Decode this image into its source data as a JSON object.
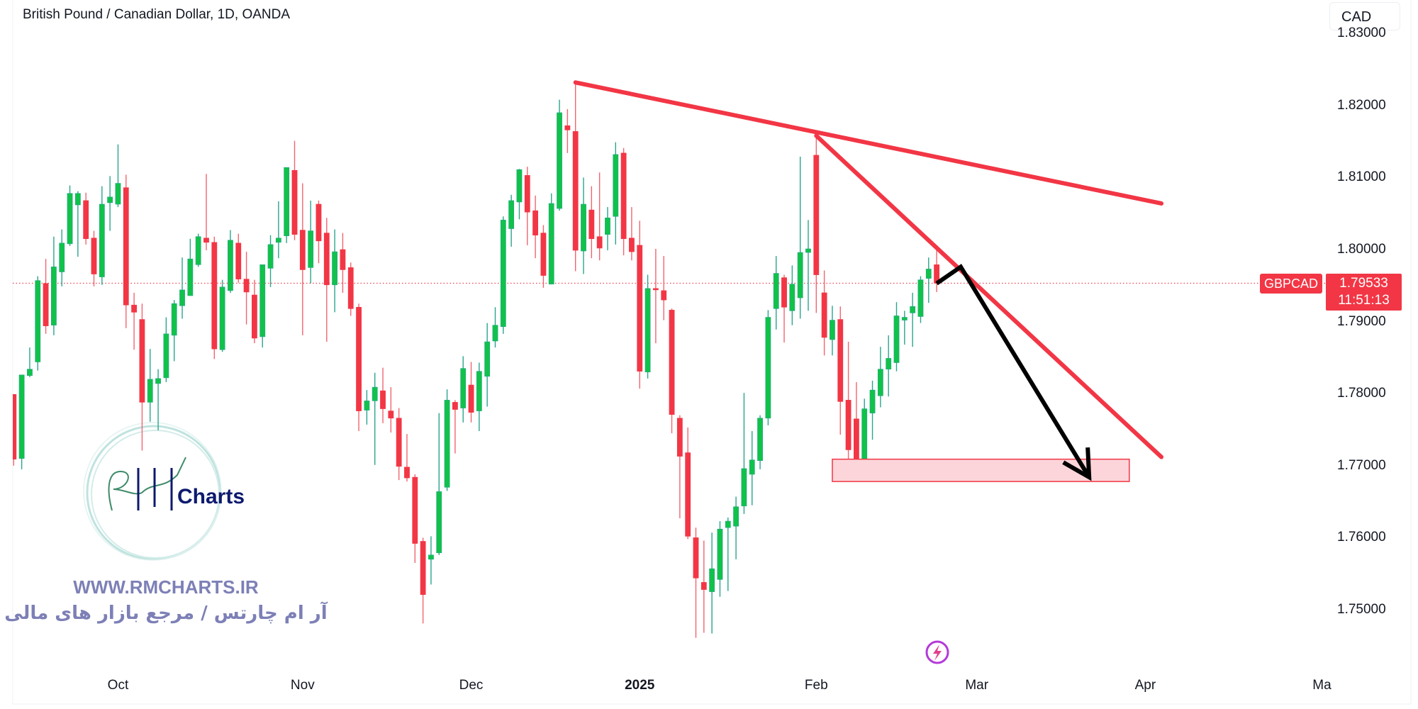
{
  "header": {
    "title": "British Pound / Canadian Dollar, 1D, OANDA",
    "currency_button": "CAD"
  },
  "price_label": {
    "symbol": "GBPCAD",
    "price": "1.79533",
    "countdown": "11:51:13",
    "color": "#f23645"
  },
  "watermark": {
    "logo_text": "Charts",
    "url": "WWW.RMCHARTS.IR",
    "tagline": "آر ام چارتس / مرجع بازار های مالی"
  },
  "icons": {
    "bottom": "lightning-icon"
  },
  "colors": {
    "up": "#10c24a",
    "down": "#f23645",
    "up_wick": "#2aa58c",
    "down_wick": "#f0656f",
    "trendline": "#f23645",
    "arrow": "#000000",
    "zone_fill": "#fbd5d9"
  },
  "chart_data": {
    "type": "candlestick",
    "title": "British Pound / Canadian Dollar, 1D, OANDA",
    "symbol": "GBPCAD",
    "timeframe": "1D",
    "last_price": 1.79533,
    "grid": false,
    "y_ticks": [
      "1.83000",
      "1.82000",
      "1.81000",
      "1.80000",
      "1.79000",
      "1.78000",
      "1.77000",
      "1.76000",
      "1.75000"
    ],
    "x_ticks": [
      {
        "label": "Oct",
        "date": "2024-10-01",
        "bold": false
      },
      {
        "label": "Nov",
        "date": "2024-11-01",
        "bold": false
      },
      {
        "label": "Dec",
        "date": "2024-12-02",
        "bold": false
      },
      {
        "label": "2025",
        "date": "2025-01-02",
        "bold": true
      },
      {
        "label": "Feb",
        "date": "2025-02-03",
        "bold": false
      },
      {
        "label": "Mar",
        "date": "2025-03-03",
        "bold": false
      },
      {
        "label": "Apr",
        "date": "2025-04-01",
        "bold": false
      },
      {
        "label": "Ma",
        "date": "2025-05-01",
        "bold": false
      }
    ],
    "candle_fields": [
      "date",
      "open",
      "high",
      "low",
      "close"
    ],
    "candles": [
      [
        "2024-09-12",
        1.7799,
        1.7799,
        1.77,
        1.7709
      ],
      [
        "2024-09-13",
        1.771,
        1.7826,
        1.7695,
        1.7826
      ],
      [
        "2024-09-16",
        1.7825,
        1.7864,
        1.7823,
        1.7834
      ],
      [
        "2024-09-17",
        1.7844,
        1.7963,
        1.7832,
        1.7957
      ],
      [
        "2024-09-18",
        1.7953,
        1.7987,
        1.7883,
        1.7894
      ],
      [
        "2024-09-19",
        1.7895,
        1.8018,
        1.7881,
        1.7976
      ],
      [
        "2024-09-20",
        1.7969,
        1.8028,
        1.7949,
        1.8009
      ],
      [
        "2024-09-23",
        1.8008,
        1.8089,
        1.8005,
        1.8078
      ],
      [
        "2024-09-24",
        1.8062,
        1.8081,
        1.799,
        1.8078
      ],
      [
        "2024-09-25",
        1.8068,
        1.8079,
        1.8007,
        1.8015
      ],
      [
        "2024-09-26",
        1.8016,
        1.8026,
        1.7949,
        1.7966
      ],
      [
        "2024-09-27",
        1.7962,
        1.8088,
        1.7951,
        1.8063
      ],
      [
        "2024-09-30",
        1.8065,
        1.8102,
        1.8026,
        1.8073
      ],
      [
        "2024-10-01",
        1.8063,
        1.8146,
        1.8059,
        1.8092
      ],
      [
        "2024-10-02",
        1.8086,
        1.8104,
        1.7891,
        1.7923
      ],
      [
        "2024-10-03",
        1.7923,
        1.794,
        1.7861,
        1.7913
      ],
      [
        "2024-10-04",
        1.7903,
        1.7925,
        1.7721,
        1.7788
      ],
      [
        "2024-10-07",
        1.7788,
        1.7862,
        1.7761,
        1.782
      ],
      [
        "2024-10-08",
        1.7814,
        1.7834,
        1.7749,
        1.7821
      ],
      [
        "2024-10-09",
        1.7822,
        1.7906,
        1.7816,
        1.7883
      ],
      [
        "2024-10-10",
        1.7881,
        1.793,
        1.7845,
        1.7925
      ],
      [
        "2024-10-11",
        1.7922,
        1.7989,
        1.7904,
        1.7944
      ],
      [
        "2024-10-14",
        1.7936,
        1.8015,
        1.7936,
        1.7987
      ],
      [
        "2024-10-15",
        1.7979,
        1.8022,
        1.7976,
        1.8018
      ],
      [
        "2024-10-16",
        1.8016,
        1.8105,
        1.7999,
        1.801
      ],
      [
        "2024-10-17",
        1.801,
        1.8018,
        1.7848,
        1.7862
      ],
      [
        "2024-10-18",
        1.7861,
        1.7958,
        1.7858,
        1.7948
      ],
      [
        "2024-10-21",
        1.7943,
        1.8027,
        1.794,
        1.8013
      ],
      [
        "2024-10-22",
        1.8009,
        1.8022,
        1.7954,
        1.7959
      ],
      [
        "2024-10-23",
        1.7959,
        1.7997,
        1.7896,
        1.7941
      ],
      [
        "2024-10-24",
        1.7937,
        1.7958,
        1.787,
        1.7877
      ],
      [
        "2024-10-25",
        1.7879,
        1.7979,
        1.7864,
        1.7979
      ],
      [
        "2024-10-28",
        1.7974,
        1.802,
        1.7948,
        1.8007
      ],
      [
        "2024-10-29",
        1.801,
        1.8067,
        1.7988,
        1.8016
      ],
      [
        "2024-10-30",
        1.8019,
        1.8114,
        1.8009,
        1.8114
      ],
      [
        "2024-10-31",
        1.811,
        1.8151,
        1.8013,
        1.8021
      ],
      [
        "2024-11-01",
        1.8027,
        1.8092,
        1.7881,
        1.7972
      ],
      [
        "2024-11-04",
        1.7975,
        1.8068,
        1.7953,
        1.8026
      ],
      [
        "2024-11-05",
        1.8063,
        1.8068,
        1.7981,
        1.8012
      ],
      [
        "2024-11-06",
        1.8023,
        1.8044,
        1.7872,
        1.7951
      ],
      [
        "2024-11-07",
        1.7951,
        1.8028,
        1.7913,
        1.7997
      ],
      [
        "2024-11-08",
        1.8,
        1.8023,
        1.794,
        1.7972
      ],
      [
        "2024-11-11",
        1.7975,
        1.7982,
        1.7908,
        1.7918
      ],
      [
        "2024-11-12",
        1.792,
        1.7925,
        1.7748,
        1.7776
      ],
      [
        "2024-11-13",
        1.7777,
        1.7805,
        1.7757,
        1.779
      ],
      [
        "2024-11-14",
        1.779,
        1.7829,
        1.7701,
        1.7809
      ],
      [
        "2024-11-15",
        1.7804,
        1.7836,
        1.7759,
        1.7779
      ],
      [
        "2024-11-18",
        1.7776,
        1.7809,
        1.7746,
        1.7766
      ],
      [
        "2024-11-19",
        1.7766,
        1.778,
        1.768,
        1.7699
      ],
      [
        "2024-11-20",
        1.7698,
        1.7744,
        1.7678,
        1.7683
      ],
      [
        "2024-11-21",
        1.7684,
        1.7688,
        1.7565,
        1.7592
      ],
      [
        "2024-11-22",
        1.7595,
        1.76,
        1.7481,
        1.7521
      ],
      [
        "2024-11-25",
        1.757,
        1.7602,
        1.7535,
        1.7576
      ],
      [
        "2024-11-26",
        1.7579,
        1.7773,
        1.7576,
        1.7664
      ],
      [
        "2024-11-27",
        1.767,
        1.7806,
        1.7665,
        1.7791
      ],
      [
        "2024-11-28",
        1.7788,
        1.7791,
        1.7717,
        1.7778
      ],
      [
        "2024-11-29",
        1.778,
        1.7852,
        1.776,
        1.7835
      ],
      [
        "2024-12-02",
        1.7812,
        1.7844,
        1.776,
        1.7774
      ],
      [
        "2024-12-03",
        1.7776,
        1.7843,
        1.7748,
        1.7831
      ],
      [
        "2024-12-04",
        1.7824,
        1.7898,
        1.7782,
        1.7872
      ],
      [
        "2024-12-05",
        1.7873,
        1.792,
        1.7864,
        1.7895
      ],
      [
        "2024-12-06",
        1.7893,
        1.8046,
        1.7883,
        1.8041
      ],
      [
        "2024-12-09",
        1.8029,
        1.8076,
        1.8004,
        1.8068
      ],
      [
        "2024-12-10",
        1.8066,
        1.8112,
        1.8042,
        1.8111
      ],
      [
        "2024-12-11",
        1.8103,
        1.8115,
        1.8006,
        1.8052
      ],
      [
        "2024-12-12",
        1.8054,
        1.8075,
        1.7988,
        1.802
      ],
      [
        "2024-12-13",
        1.8023,
        1.8034,
        1.7947,
        1.7964
      ],
      [
        "2024-12-16",
        1.7952,
        1.8078,
        1.7952,
        1.8064
      ],
      [
        "2024-12-17",
        1.8057,
        1.8208,
        1.8054,
        1.819
      ],
      [
        "2024-12-18",
        1.8172,
        1.8195,
        1.8134,
        1.8166
      ],
      [
        "2024-12-19",
        1.8164,
        1.8231,
        1.797,
        1.7999
      ],
      [
        "2024-12-20",
        1.7998,
        1.81,
        1.7966,
        1.8063
      ],
      [
        "2024-12-23",
        1.8055,
        1.8088,
        1.7988,
        1.8015
      ],
      [
        "2024-12-24",
        1.8018,
        1.8107,
        1.7985,
        1.8002
      ],
      [
        "2024-12-26",
        1.8021,
        1.8059,
        1.7999,
        1.8044
      ],
      [
        "2024-12-27",
        1.8046,
        1.8149,
        1.8007,
        1.8132
      ],
      [
        "2024-12-30",
        1.8134,
        1.8141,
        1.7992,
        1.8015
      ],
      [
        "2024-12-31",
        1.8016,
        1.8059,
        1.7985,
        1.7997
      ],
      [
        "2025-01-02",
        1.8006,
        1.804,
        1.7807,
        1.7831
      ],
      [
        "2025-01-03",
        1.783,
        1.7965,
        1.7821,
        1.7946
      ],
      [
        "2025-01-06",
        1.7946,
        1.8001,
        1.787,
        1.7944
      ],
      [
        "2025-01-07",
        1.7943,
        1.7991,
        1.7902,
        1.793
      ],
      [
        "2025-01-08",
        1.7916,
        1.7918,
        1.7745,
        1.7771
      ],
      [
        "2025-01-09",
        1.7766,
        1.777,
        1.7627,
        1.7713
      ],
      [
        "2025-01-10",
        1.7718,
        1.7753,
        1.7598,
        1.7602
      ],
      [
        "2025-01-13",
        1.76,
        1.7614,
        1.7461,
        1.7544
      ],
      [
        "2025-01-14",
        1.7538,
        1.7596,
        1.7468,
        1.7528
      ],
      [
        "2025-01-15",
        1.7525,
        1.7607,
        1.7467,
        1.7557
      ],
      [
        "2025-01-16",
        1.7542,
        1.7623,
        1.7518,
        1.7612
      ],
      [
        "2025-01-17",
        1.7614,
        1.7628,
        1.7526,
        1.7623
      ],
      [
        "2025-01-20",
        1.7616,
        1.7657,
        1.757,
        1.7643
      ],
      [
        "2025-01-21",
        1.7644,
        1.7801,
        1.7633,
        1.7696
      ],
      [
        "2025-01-22",
        1.7688,
        1.7748,
        1.7645,
        1.7708
      ],
      [
        "2025-01-23",
        1.7707,
        1.777,
        1.7695,
        1.7766
      ],
      [
        "2025-01-24",
        1.7766,
        1.7916,
        1.7756,
        1.7906
      ],
      [
        "2025-01-27",
        1.7918,
        1.7991,
        1.7889,
        1.7967
      ],
      [
        "2025-01-28",
        1.7961,
        1.7965,
        1.7871,
        1.792
      ],
      [
        "2025-01-29",
        1.7915,
        1.7978,
        1.7895,
        1.7952
      ],
      [
        "2025-01-30",
        1.7933,
        1.8129,
        1.7904,
        1.7996
      ],
      [
        "2025-01-31",
        1.7996,
        1.8041,
        1.7915,
        1.8001
      ],
      [
        "2025-02-03",
        1.8131,
        1.816,
        1.7912,
        1.7965
      ],
      [
        "2025-02-04",
        1.794,
        1.7971,
        1.7853,
        1.7878
      ],
      [
        "2025-02-05",
        1.7875,
        1.7922,
        1.7853,
        1.7902
      ],
      [
        "2025-02-06",
        1.7903,
        1.7921,
        1.7743,
        1.7789
      ],
      [
        "2025-02-07",
        1.7791,
        1.7872,
        1.7707,
        1.7722
      ],
      [
        "2025-02-10",
        1.7765,
        1.7816,
        1.7693,
        1.7703
      ],
      [
        "2025-02-11",
        1.7706,
        1.7793,
        1.7679,
        1.7779
      ],
      [
        "2025-02-12",
        1.7773,
        1.7818,
        1.7736,
        1.7805
      ],
      [
        "2025-02-13",
        1.7797,
        1.7865,
        1.7781,
        1.7834
      ],
      [
        "2025-02-14",
        1.7834,
        1.7881,
        1.7796,
        1.7849
      ],
      [
        "2025-02-17",
        1.7843,
        1.7927,
        1.7831,
        1.7908
      ],
      [
        "2025-02-18",
        1.7902,
        1.7915,
        1.7868,
        1.7906
      ],
      [
        "2025-02-19",
        1.7912,
        1.794,
        1.7865,
        1.7921
      ],
      [
        "2025-02-20",
        1.7907,
        1.7963,
        1.7898,
        1.7958
      ],
      [
        "2025-02-21",
        1.796,
        1.7989,
        1.7926,
        1.7973
      ],
      [
        "2025-02-24",
        1.7979,
        1.8,
        1.7941,
        1.79533
      ]
    ],
    "drawings": {
      "trendlines": [
        {
          "from": [
            "2024-12-19",
            1.8232
          ],
          "to": [
            "2025-04-03",
            1.8064
          ]
        },
        {
          "from": [
            "2025-02-03",
            1.8158
          ],
          "to": [
            "2025-04-03",
            1.7712
          ]
        }
      ],
      "arrow_path": [
        [
          "2025-02-24",
          1.7953
        ],
        [
          "2025-02-27",
          1.7976
        ],
        [
          "2025-03-21",
          1.7684
        ]
      ],
      "support_zone": {
        "from": "2025-02-05",
        "to": "2025-03-28",
        "top": 1.7709,
        "bottom": 1.7678
      }
    }
  }
}
